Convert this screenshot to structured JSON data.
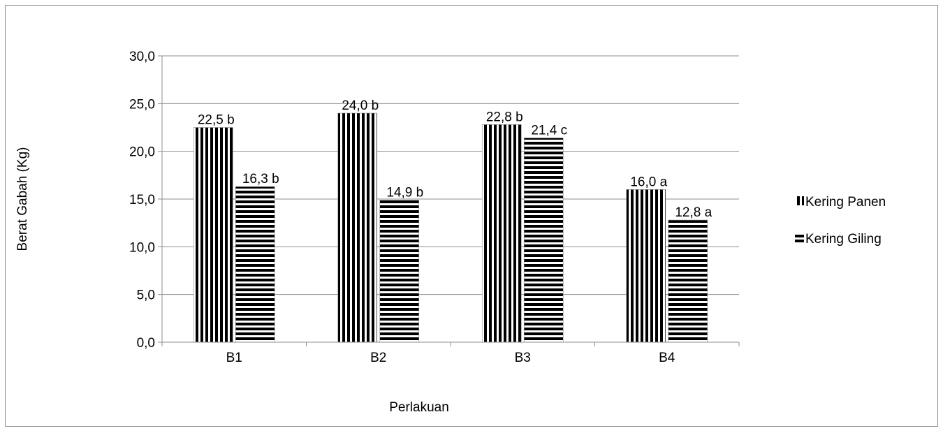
{
  "chart_data": {
    "type": "bar",
    "title": "",
    "xlabel": "Perlakuan",
    "ylabel": "Berat Gabah (Kg)",
    "categories": [
      "B1",
      "B2",
      "B3",
      "B4"
    ],
    "ylim": [
      0,
      30
    ],
    "yticks": [
      "0,0",
      "5,0",
      "10,0",
      "15,0",
      "20,0",
      "25,0",
      "30,0"
    ],
    "grid": true,
    "legend_position": "right",
    "series": [
      {
        "name": "Kering Panen",
        "pattern": "vertical-stripes",
        "values": [
          22.5,
          24.0,
          22.8,
          16.0
        ],
        "labels": [
          "22,5 b",
          "24,0 b",
          "22,8 b",
          "16,0 a"
        ]
      },
      {
        "name": "Kering Giling",
        "pattern": "horizontal-stripes",
        "values": [
          16.3,
          14.9,
          21.4,
          12.8
        ],
        "labels": [
          "16,3 b",
          "14,9 b",
          "21,4 c",
          "12,8 a"
        ]
      }
    ],
    "colors": {
      "bar_fill": "#000000",
      "bar_background": "#ffffff",
      "grid": "#8c8c8c",
      "axis": "#8c8c8c",
      "frame": "#8c8c8c"
    }
  }
}
